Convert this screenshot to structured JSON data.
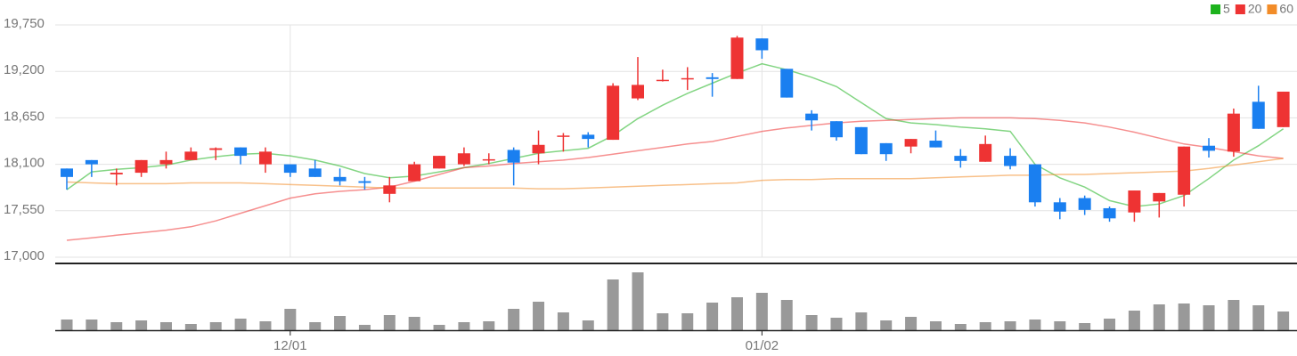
{
  "chart_data": {
    "type": "candlestick",
    "categories": [
      null,
      null,
      null,
      null,
      null,
      null,
      null,
      null,
      null,
      "12/01",
      null,
      null,
      null,
      null,
      null,
      null,
      null,
      null,
      null,
      null,
      null,
      null,
      null,
      null,
      null,
      null,
      null,
      null,
      "01/02",
      null,
      null,
      null,
      null,
      null,
      null,
      null,
      null,
      null,
      null,
      null,
      null,
      null,
      null,
      null,
      null,
      null,
      null,
      null,
      null,
      null
    ],
    "open": [
      18050,
      18150,
      17980,
      18000,
      18100,
      18150,
      18270,
      18300,
      18100,
      18100,
      18050,
      17950,
      17900,
      17750,
      17900,
      18050,
      18100,
      18150,
      18270,
      18230,
      18430,
      18450,
      18390,
      18880,
      19090,
      19110,
      19130,
      19110,
      19590,
      19230,
      18700,
      18610,
      18540,
      18350,
      18310,
      18380,
      18200,
      18130,
      18200,
      18100,
      17650,
      17700,
      17580,
      17530,
      17660,
      17740,
      18320,
      18250,
      18840,
      18540
    ],
    "high": [
      18050,
      18150,
      18050,
      18150,
      18250,
      18300,
      18300,
      18300,
      18300,
      18100,
      18150,
      18050,
      17950,
      17950,
      18130,
      18200,
      18300,
      18230,
      18300,
      18500,
      18470,
      18480,
      19060,
      19370,
      19220,
      19250,
      19180,
      19620,
      19590,
      19230,
      18740,
      18610,
      18540,
      18350,
      18400,
      18500,
      18280,
      18440,
      18290,
      18100,
      17700,
      17730,
      17600,
      17790,
      17760,
      18310,
      18410,
      18760,
      19030,
      18960
    ],
    "low": [
      17800,
      17950,
      17850,
      17950,
      18050,
      18150,
      18150,
      18100,
      18000,
      17950,
      17950,
      17850,
      17800,
      17650,
      17900,
      18050,
      18080,
      18100,
      17850,
      18100,
      18250,
      18300,
      18390,
      18860,
      19080,
      18980,
      18900,
      19110,
      19350,
      18890,
      18500,
      18380,
      18220,
      18140,
      18230,
      18300,
      18060,
      18130,
      18040,
      17600,
      17450,
      17500,
      17420,
      17420,
      17470,
      17600,
      18180,
      18190,
      18520,
      18540
    ],
    "close": [
      17950,
      18100,
      18000,
      18150,
      18150,
      18250,
      18290,
      18200,
      18250,
      18000,
      17950,
      17900,
      17880,
      17850,
      18100,
      18200,
      18230,
      18160,
      18120,
      18330,
      18440,
      18400,
      19030,
      19040,
      19100,
      19120,
      19110,
      19600,
      19450,
      18890,
      18620,
      18420,
      18220,
      18220,
      18400,
      18300,
      18140,
      18340,
      18080,
      17650,
      17540,
      17560,
      17460,
      17790,
      17760,
      18310,
      18260,
      18700,
      18520,
      18960
    ],
    "up_color": "#ee3333",
    "down_color": "#1a7ff0",
    "series": [
      {
        "name": "5",
        "color": "#1db31d",
        "values": [
          17800,
          18010,
          18040,
          18060,
          18090,
          18150,
          18190,
          18220,
          18230,
          18200,
          18150,
          18080,
          17990,
          17940,
          17960,
          18010,
          18060,
          18110,
          18170,
          18230,
          18260,
          18290,
          18440,
          18640,
          18800,
          18940,
          19060,
          19180,
          19290,
          19220,
          19130,
          19020,
          18830,
          18640,
          18590,
          18570,
          18540,
          18520,
          18490,
          18100,
          17940,
          17830,
          17670,
          17600,
          17630,
          17730,
          17930,
          18150,
          18320,
          18520
        ]
      },
      {
        "name": "20",
        "color": "#ee3333",
        "values": [
          17200,
          17230,
          17260,
          17290,
          17320,
          17360,
          17430,
          17520,
          17610,
          17700,
          17750,
          17780,
          17800,
          17830,
          17900,
          17980,
          18060,
          18080,
          18110,
          18130,
          18150,
          18180,
          18220,
          18260,
          18300,
          18340,
          18370,
          18430,
          18490,
          18530,
          18560,
          18590,
          18610,
          18620,
          18630,
          18640,
          18650,
          18650,
          18650,
          18640,
          18620,
          18590,
          18540,
          18480,
          18410,
          18340,
          18300,
          18250,
          18200,
          18170
        ]
      },
      {
        "name": "60",
        "color": "#f28c28",
        "values": [
          17890,
          17880,
          17870,
          17870,
          17870,
          17880,
          17880,
          17880,
          17870,
          17860,
          17850,
          17840,
          17830,
          17820,
          17820,
          17820,
          17820,
          17820,
          17820,
          17810,
          17810,
          17820,
          17830,
          17840,
          17850,
          17860,
          17870,
          17880,
          17910,
          17920,
          17920,
          17930,
          17930,
          17930,
          17930,
          17940,
          17950,
          17960,
          17970,
          17970,
          17980,
          17980,
          17990,
          18000,
          18010,
          18020,
          18050,
          18090,
          18130,
          18170
        ]
      }
    ],
    "volume": {
      "color": "#999999",
      "ylim": [
        0,
        70
      ],
      "values": [
        12,
        12,
        9,
        11,
        9,
        7,
        9,
        13,
        10,
        24,
        9,
        16,
        6,
        17,
        15,
        6,
        9,
        10,
        24,
        32,
        20,
        11,
        57,
        65,
        19,
        19,
        31,
        37,
        42,
        34,
        17,
        14,
        20,
        11,
        15,
        10,
        7,
        9,
        10,
        12,
        10,
        8,
        13,
        22,
        29,
        30,
        28,
        34,
        28,
        21
      ]
    },
    "ylim": [
      17000,
      19750
    ],
    "yticks": [
      {
        "value": 17000,
        "label": "17,000"
      },
      {
        "value": 17550,
        "label": "17,550"
      },
      {
        "value": 18100,
        "label": "18,100"
      },
      {
        "value": 18650,
        "label": "18,650"
      },
      {
        "value": 19200,
        "label": "19,200"
      },
      {
        "value": 19750,
        "label": "19,750"
      }
    ],
    "grid": true
  }
}
